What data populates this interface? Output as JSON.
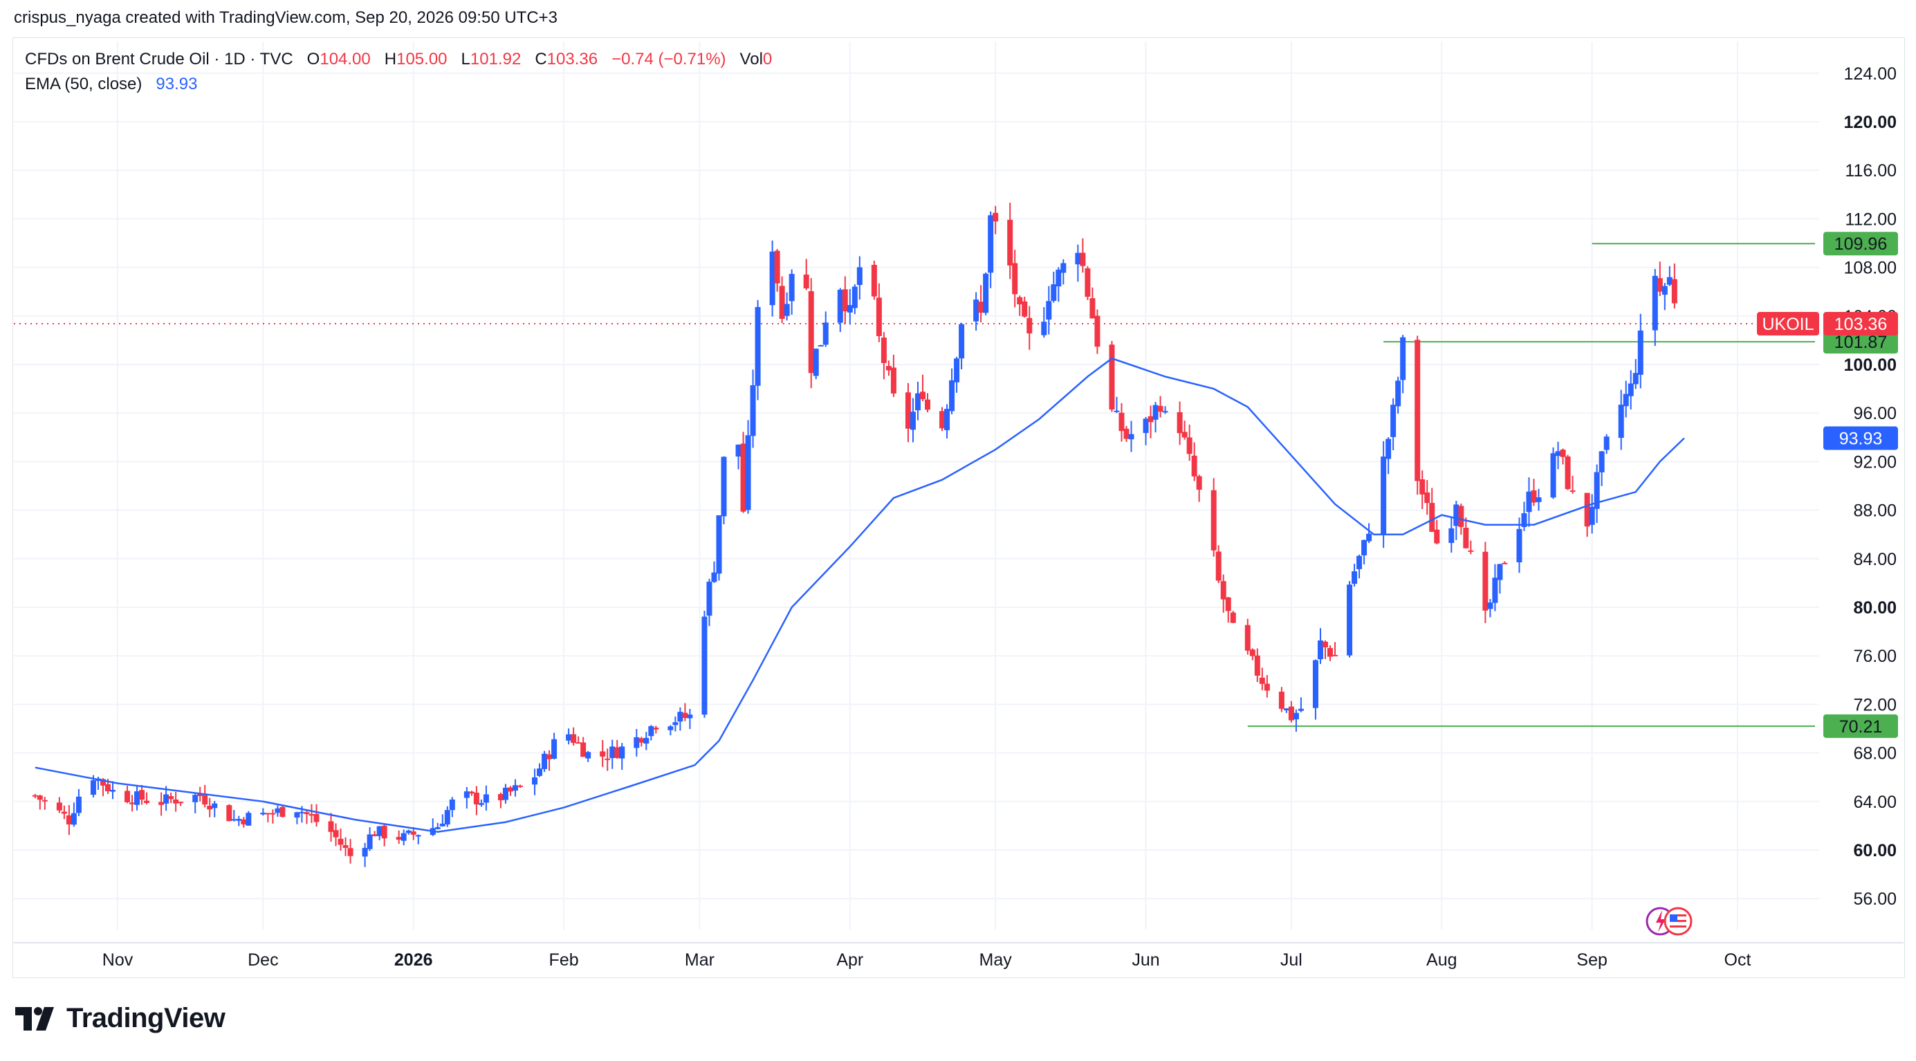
{
  "byline": "crispus_nyaga created with TradingView.com, Sep 20, 2026 09:50 UTC+3",
  "legend": {
    "symbol": "CFDs on Brent Crude Oil · 1D · TVC",
    "o_label": "O",
    "o_value": "104.00",
    "h_label": "H",
    "h_value": "105.00",
    "l_label": "L",
    "l_value": "101.92",
    "c_label": "C",
    "c_value": "103.36",
    "change": "−0.74 (−0.71%)",
    "vol_label": "Vol",
    "vol_value": "0",
    "ema_label": "EMA (50, close)",
    "ema_value": "93.93"
  },
  "brand": {
    "name": "TradingView"
  },
  "colors": {
    "up": "#2962ff",
    "down": "#f23645",
    "ema": "#2962ff",
    "level": "#4caf50",
    "grid": "#f0f3fa",
    "axis_text": "#131722"
  },
  "chart_data": {
    "type": "candlestick",
    "symbol": "UKOIL",
    "ylim": [
      52,
      126
    ],
    "y_ticks": [
      56,
      60,
      64,
      68,
      72,
      76,
      80,
      84,
      88,
      92,
      96,
      100,
      104,
      108,
      112,
      116,
      120,
      124
    ],
    "y_tick_labels": [
      "56.00",
      "60.00",
      "64.00",
      "68.00",
      "72.00",
      "76.00",
      "80.00",
      "84.00",
      "88.00",
      "92.00",
      "96.00",
      "100.00",
      "104.00",
      "108.00",
      "112.00",
      "116.00",
      "120.00",
      "124.00"
    ],
    "bold_ticks": [
      "60.00",
      "80.00",
      "100.00",
      "120.00"
    ],
    "x_range": [
      "2025-10-15",
      "2026-10-15"
    ],
    "x_ticks": [
      {
        "date": "2025-11-01",
        "label": "Nov",
        "bold": false
      },
      {
        "date": "2025-12-01",
        "label": "Dec",
        "bold": false
      },
      {
        "date": "2026-01-01",
        "label": "2026",
        "bold": true
      },
      {
        "date": "2026-02-01",
        "label": "Feb",
        "bold": false
      },
      {
        "date": "2026-03-01",
        "label": "Mar",
        "bold": false
      },
      {
        "date": "2026-04-01",
        "label": "Apr",
        "bold": false
      },
      {
        "date": "2026-05-01",
        "label": "May",
        "bold": false
      },
      {
        "date": "2026-06-01",
        "label": "Jun",
        "bold": false
      },
      {
        "date": "2026-07-01",
        "label": "Jul",
        "bold": false
      },
      {
        "date": "2026-08-01",
        "label": "Aug",
        "bold": false
      },
      {
        "date": "2026-09-01",
        "label": "Sep",
        "bold": false
      },
      {
        "date": "2026-10-01",
        "label": "Oct",
        "bold": false
      }
    ],
    "close_path": [
      [
        "2025-10-15",
        64.5
      ],
      [
        "2025-10-22",
        62.5
      ],
      [
        "2025-10-26",
        66.5
      ],
      [
        "2025-11-01",
        64.5
      ],
      [
        "2025-11-10",
        64.0
      ],
      [
        "2025-11-18",
        64.5
      ],
      [
        "2025-11-25",
        62.5
      ],
      [
        "2025-12-02",
        63.0
      ],
      [
        "2025-12-08",
        63.5
      ],
      [
        "2025-12-15",
        61.5
      ],
      [
        "2025-12-19",
        59.5
      ],
      [
        "2025-12-24",
        61.5
      ],
      [
        "2025-12-30",
        61.0
      ],
      [
        "2026-01-06",
        62.0
      ],
      [
        "2026-01-10",
        64.5
      ],
      [
        "2026-01-17",
        64.0
      ],
      [
        "2026-01-25",
        65.5
      ],
      [
        "2026-02-01",
        70.0
      ],
      [
        "2026-02-07",
        67.5
      ],
      [
        "2026-02-14",
        68.5
      ],
      [
        "2026-02-20",
        70.5
      ],
      [
        "2026-02-27",
        71.0
      ],
      [
        "2026-03-01",
        78.0
      ],
      [
        "2026-03-04",
        83.5
      ],
      [
        "2026-03-06",
        92.0
      ],
      [
        "2026-03-08",
        99.0
      ],
      [
        "2026-03-10",
        88.0
      ],
      [
        "2026-03-13",
        104.0
      ],
      [
        "2026-03-16",
        110.0
      ],
      [
        "2026-03-18",
        104.0
      ],
      [
        "2026-03-22",
        112.0
      ],
      [
        "2026-03-24",
        100.0
      ],
      [
        "2026-03-26",
        102.0
      ],
      [
        "2026-03-29",
        108.0
      ],
      [
        "2026-04-01",
        104.0
      ],
      [
        "2026-04-04",
        110.0
      ],
      [
        "2026-04-07",
        102.0
      ],
      [
        "2026-04-10",
        97.0
      ],
      [
        "2026-04-13",
        95.0
      ],
      [
        "2026-04-16",
        98.0
      ],
      [
        "2026-04-19",
        93.0
      ],
      [
        "2026-04-22",
        99.0
      ],
      [
        "2026-04-25",
        106.0
      ],
      [
        "2026-04-28",
        104.0
      ],
      [
        "2026-04-30",
        112.0
      ],
      [
        "2026-05-03",
        110.0
      ],
      [
        "2026-05-06",
        104.0
      ],
      [
        "2026-05-09",
        101.0
      ],
      [
        "2026-05-12",
        106.0
      ],
      [
        "2026-05-15",
        108.0
      ],
      [
        "2026-05-18",
        110.0
      ],
      [
        "2026-05-20",
        106.0
      ],
      [
        "2026-05-22",
        102.0
      ],
      [
        "2026-05-25",
        96.0
      ],
      [
        "2026-05-28",
        94.0
      ],
      [
        "2026-06-01",
        95.0
      ],
      [
        "2026-06-04",
        97.0
      ],
      [
        "2026-06-06",
        94.0
      ],
      [
        "2026-06-08",
        95.0
      ],
      [
        "2026-06-10",
        92.0
      ],
      [
        "2026-06-13",
        88.0
      ],
      [
        "2026-06-16",
        82.0
      ],
      [
        "2026-06-19",
        78.0
      ],
      [
        "2026-06-22",
        76.0
      ],
      [
        "2026-06-25",
        74.0
      ],
      [
        "2026-06-28",
        72.5
      ],
      [
        "2026-07-01",
        71.0
      ],
      [
        "2026-07-04",
        72.0
      ],
      [
        "2026-07-07",
        77.0
      ],
      [
        "2026-07-10",
        76.0
      ],
      [
        "2026-07-13",
        82.0
      ],
      [
        "2026-07-16",
        85.0
      ],
      [
        "2026-07-19",
        90.0
      ],
      [
        "2026-07-22",
        96.0
      ],
      [
        "2026-07-24",
        101.5
      ],
      [
        "2026-07-26",
        92.0
      ],
      [
        "2026-07-29",
        88.0
      ],
      [
        "2026-08-01",
        84.0
      ],
      [
        "2026-08-04",
        89.0
      ],
      [
        "2026-08-07",
        84.0
      ],
      [
        "2026-08-10",
        79.0
      ],
      [
        "2026-08-13",
        83.0
      ],
      [
        "2026-08-16",
        86.0
      ],
      [
        "2026-08-19",
        89.0
      ],
      [
        "2026-08-22",
        90.0
      ],
      [
        "2026-08-25",
        93.0
      ],
      [
        "2026-08-28",
        89.0
      ],
      [
        "2026-08-31",
        87.0
      ],
      [
        "2026-09-03",
        92.0
      ],
      [
        "2026-09-06",
        96.0
      ],
      [
        "2026-09-09",
        98.0
      ],
      [
        "2026-09-11",
        102.0
      ],
      [
        "2026-09-13",
        109.0
      ],
      [
        "2026-09-15",
        106.0
      ],
      [
        "2026-09-17",
        107.0
      ],
      [
        "2026-09-19",
        104.0
      ],
      [
        "2026-09-20",
        103.36
      ]
    ],
    "ema_50": [
      [
        "2025-10-15",
        66.8
      ],
      [
        "2025-11-01",
        65.5
      ],
      [
        "2025-12-01",
        64.0
      ],
      [
        "2025-12-20",
        62.5
      ],
      [
        "2026-01-06",
        61.5
      ],
      [
        "2026-01-20",
        62.3
      ],
      [
        "2026-02-01",
        63.5
      ],
      [
        "2026-02-15",
        65.3
      ],
      [
        "2026-02-28",
        67.0
      ],
      [
        "2026-03-05",
        69.0
      ],
      [
        "2026-03-12",
        74.0
      ],
      [
        "2026-03-20",
        80.0
      ],
      [
        "2026-04-01",
        85.0
      ],
      [
        "2026-04-10",
        89.0
      ],
      [
        "2026-04-20",
        90.5
      ],
      [
        "2026-05-01",
        93.0
      ],
      [
        "2026-05-10",
        95.5
      ],
      [
        "2026-05-20",
        99.0
      ],
      [
        "2026-05-25",
        100.5
      ],
      [
        "2026-06-05",
        99.0
      ],
      [
        "2026-06-15",
        98.0
      ],
      [
        "2026-06-22",
        96.5
      ],
      [
        "2026-07-01",
        92.5
      ],
      [
        "2026-07-10",
        88.5
      ],
      [
        "2026-07-18",
        86.0
      ],
      [
        "2026-07-24",
        86.0
      ],
      [
        "2026-08-01",
        87.6
      ],
      [
        "2026-08-10",
        86.8
      ],
      [
        "2026-08-20",
        86.8
      ],
      [
        "2026-09-01",
        88.5
      ],
      [
        "2026-09-10",
        89.5
      ],
      [
        "2026-09-15",
        92.0
      ],
      [
        "2026-09-20",
        93.93
      ]
    ],
    "horizontal_levels": [
      {
        "value": 109.96,
        "label": "109.96",
        "from": "2026-09-01"
      },
      {
        "value": 101.87,
        "label": "101.87",
        "from": "2026-07-20"
      },
      {
        "value": 70.21,
        "label": "70.21",
        "from": "2026-06-22"
      }
    ],
    "last_price": {
      "value": 103.36,
      "label": "103.36",
      "symbol": "UKOIL"
    },
    "ema_label": "93.93",
    "legend_position": "top-left",
    "grid": true
  }
}
